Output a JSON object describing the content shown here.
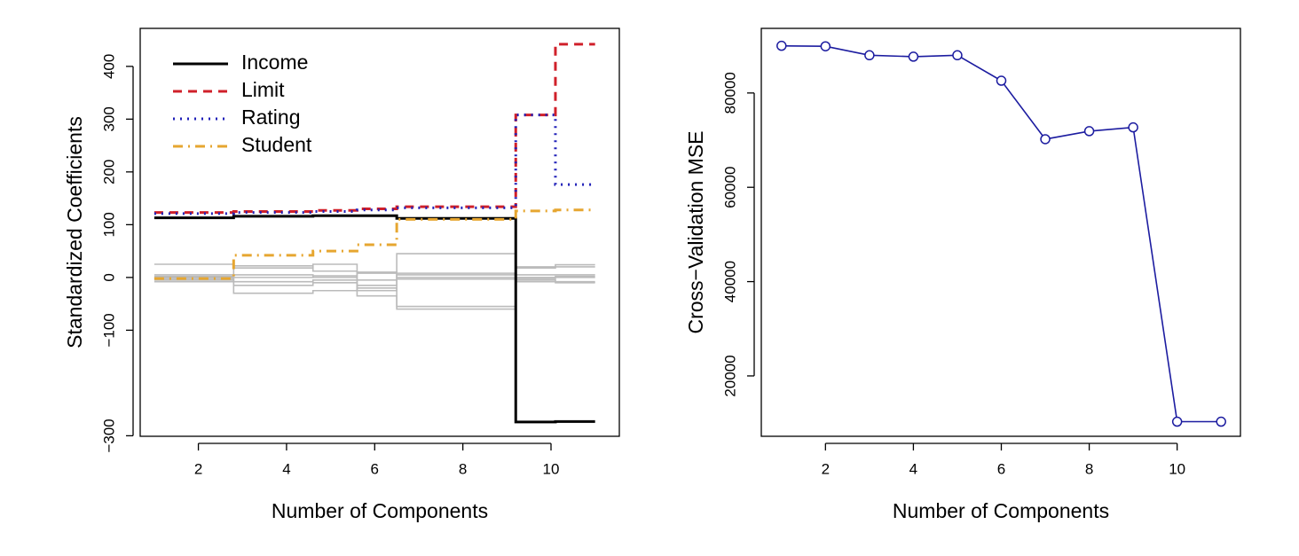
{
  "chart_data": [
    {
      "type": "line",
      "ylabel": "Standardized Coefficients",
      "xlabel": "Number of Components",
      "x": [
        1,
        2.8,
        2.8,
        4.6,
        4.6,
        5.6,
        5.6,
        6.5,
        6.5,
        9.2,
        9.2,
        10.1,
        10.1,
        11
      ],
      "xlim": [
        0.68,
        11.55
      ],
      "xticks": [
        2,
        4,
        6,
        8,
        10
      ],
      "ylim": [
        -301,
        472
      ],
      "yticks": [
        {
          "value": -300,
          "label": "−300"
        },
        {
          "value": -100,
          "label": "−100"
        },
        0,
        100,
        200,
        300,
        400
      ],
      "legend": "top-left",
      "series": [
        {
          "color": "#bbbbbb",
          "values": [
            25,
            25,
            22,
            22,
            12,
            12,
            8,
            8,
            45,
            45,
            20,
            20,
            24,
            24
          ]
        },
        {
          "color": "#bbbbbb",
          "values": [
            5,
            5,
            18,
            18,
            25,
            25,
            -5,
            -5,
            5,
            5,
            18,
            18,
            20,
            20
          ]
        },
        {
          "color": "#bbbbbb",
          "values": [
            2,
            2,
            -8,
            -8,
            -5,
            -5,
            -20,
            -20,
            -60,
            -60,
            -8,
            -8,
            -10,
            -10
          ]
        },
        {
          "color": "#bbbbbb",
          "values": [
            -2,
            -2,
            -15,
            -15,
            -10,
            -10,
            -35,
            -35,
            -55,
            -55,
            -5,
            -5,
            -8,
            -8
          ]
        },
        {
          "color": "#bbbbbb",
          "values": [
            -8,
            -8,
            -30,
            -30,
            -25,
            -25,
            -15,
            -15,
            8,
            8,
            5,
            5,
            5,
            5
          ]
        },
        {
          "color": "#bbbbbb",
          "values": [
            0,
            0,
            5,
            5,
            0,
            0,
            -25,
            -25,
            -3,
            -3,
            -2,
            -2,
            0,
            0
          ]
        },
        {
          "color": "#bbbbbb",
          "values": [
            -5,
            -5,
            0,
            0,
            3,
            3,
            10,
            10,
            0,
            0,
            0,
            0,
            2,
            2
          ]
        },
        {
          "name": "Income",
          "color": "#000000",
          "linestyle": "solid",
          "values": [
            113,
            113,
            116,
            116,
            117,
            117,
            117,
            117,
            112,
            112,
            -274,
            -274,
            -273,
            -273
          ]
        },
        {
          "name": "Limit",
          "color": "#d0202a",
          "linestyle": "dashed",
          "values": [
            123,
            123,
            125,
            125,
            127,
            127,
            130,
            130,
            134,
            134,
            308,
            308,
            442,
            442
          ]
        },
        {
          "name": "Rating",
          "color": "#2020b8",
          "linestyle": "dotted",
          "values": [
            121,
            121,
            123,
            123,
            125,
            125,
            128,
            128,
            132,
            132,
            308,
            308,
            176,
            176
          ]
        },
        {
          "name": "Student",
          "color": "#e6a630",
          "linestyle": "dashdot",
          "values": [
            -2,
            -2,
            42,
            42,
            50,
            50,
            62,
            62,
            110,
            110,
            126,
            126,
            128,
            128
          ]
        }
      ]
    },
    {
      "type": "line",
      "ylabel": "Cross−Validation MSE",
      "xlabel": "Number of Components",
      "x": [
        1,
        2,
        3,
        4,
        5,
        6,
        7,
        8,
        9,
        10,
        11
      ],
      "xlim": [
        0.54,
        11.44
      ],
      "xticks": [
        2,
        4,
        6,
        8,
        10
      ],
      "ylim": [
        7200,
        93700
      ],
      "yticks": [
        20000,
        40000,
        60000,
        80000
      ],
      "marker": "circle",
      "series": [
        {
          "color": "#1c1ca0",
          "values": [
            90000,
            89900,
            88000,
            87700,
            88000,
            82600,
            70200,
            71900,
            72700,
            10300,
            10300
          ]
        }
      ]
    }
  ]
}
